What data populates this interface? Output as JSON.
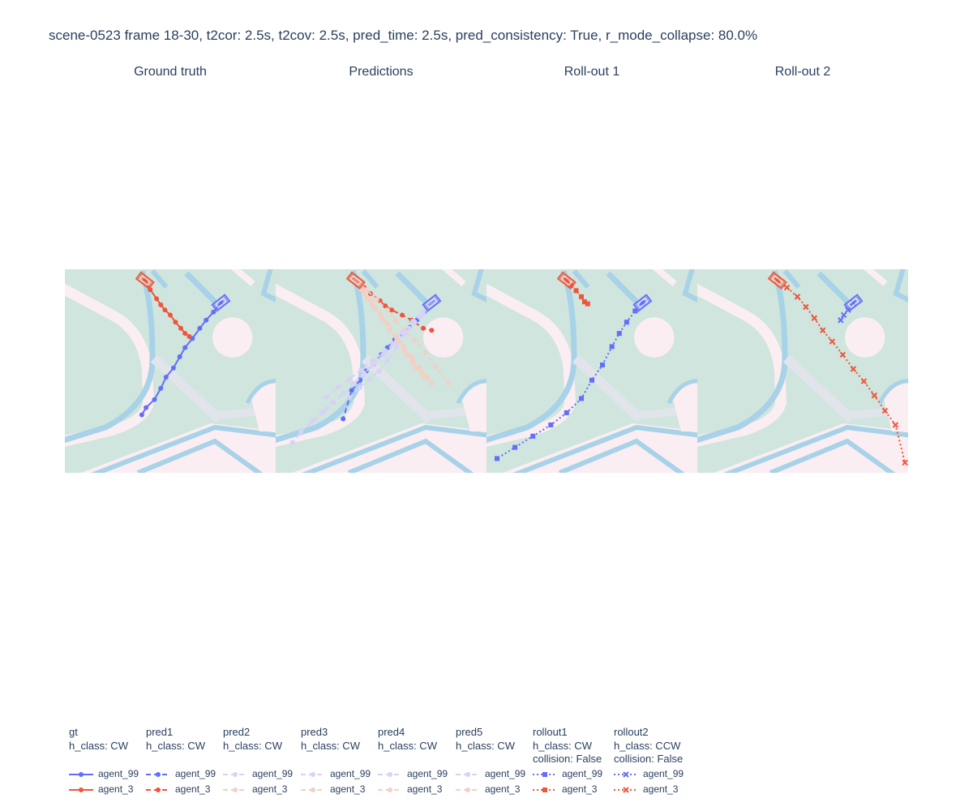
{
  "title": "scene-0523 frame 18-30, t2cor: 2.5s, t2cov: 2.5s, pred_time: 2.5s, pred_consistency: True, r_mode_collapse: 80.0%",
  "panels": [
    {
      "title": "Ground truth"
    },
    {
      "title": "Predictions"
    },
    {
      "title": "Roll-out 1"
    },
    {
      "title": "Roll-out 2"
    }
  ],
  "colors": {
    "agent_99": "#636efa",
    "agent_3": "#ef553b",
    "agent_99_faded": "#d6d2f8",
    "agent_3_faded": "#f4cfc3",
    "map_background": "#cfe5de",
    "lane_border": "#a8d2e8",
    "sidewalk": "#fbeef2",
    "crosswalk": "#e1e4ea"
  },
  "chart_data": {
    "type": "scatter",
    "title": "scene-0523 frame 18-30, t2cor: 2.5s, t2cov: 2.5s, pred_time: 2.5s, pred_consistency: True, r_mode_collapse: 80.0%",
    "panel_extent": {
      "x": [
        0,
        100
      ],
      "y": [
        0,
        100
      ]
    },
    "map_elements": {
      "center_roundel": {
        "cx": 79.5,
        "cy": 66.5,
        "r": 9.5
      }
    },
    "vehicles": {
      "agent_3": {
        "x": 38,
        "y": 94.5,
        "heading_deg": -38
      },
      "agent_99": {
        "x": 74,
        "y": 83.5,
        "heading_deg": 38
      }
    },
    "panels": [
      {
        "title": "Ground truth",
        "series": [
          {
            "name": "gt",
            "agent": "agent_99",
            "marker": "circle",
            "dash": "solid",
            "faded": false,
            "x": [
              74,
              70.5,
              67,
              64,
              60.5,
              57,
              54.5,
              51.5,
              48,
              45.5,
              42.5,
              38.5,
              36.5
            ],
            "y": [
              83.5,
              79,
              75,
              71,
              66,
              61.5,
              57,
              51.5,
              47,
              41.5,
              36,
              32,
              28.5
            ]
          },
          {
            "name": "gt",
            "agent": "agent_3",
            "marker": "circle",
            "dash": "solid",
            "faded": false,
            "x": [
              38,
              40.5,
              43.5,
              45.5,
              47.5,
              50,
              52.5,
              55,
              57,
              59
            ],
            "y": [
              94.5,
              90,
              85.5,
              82.5,
              80,
              77.5,
              74,
              71,
              68.5,
              67
            ]
          }
        ]
      },
      {
        "title": "Predictions",
        "series": [
          {
            "name": "pred1",
            "agent": "agent_99",
            "marker": "circle",
            "dash": "dash",
            "faded": false,
            "x": [
              74,
              70.5,
              67,
              63.5,
              60,
              56.5,
              53,
              50,
              46.5,
              43,
              40,
              36,
              32
            ],
            "y": [
              83.5,
              79,
              75,
              71.5,
              68,
              65.5,
              61.5,
              58,
              53.5,
              50,
              45.5,
              40.5,
              26.5
            ]
          },
          {
            "name": "pred1",
            "agent": "agent_3",
            "marker": "circle",
            "dash": "dash",
            "faded": false,
            "x": [
              38,
              42,
              45,
              49.5,
              52,
              55,
              60,
              64.5,
              70,
              74
            ],
            "y": [
              94.5,
              91,
              88,
              84.5,
              82,
              80,
              77.5,
              75,
              71,
              70
            ]
          },
          {
            "name": "pred2",
            "agent": "agent_99",
            "marker": "circle",
            "dash": "dash",
            "faded": true,
            "x": [
              74,
              70,
              65.5,
              61.5,
              57.5,
              53,
              49,
              44.5,
              40,
              35
            ],
            "y": [
              83.5,
              79.5,
              74.5,
              68.5,
              61.5,
              55.5,
              50,
              46,
              42,
              37
            ]
          },
          {
            "name": "pred2",
            "agent": "agent_3",
            "marker": "circle",
            "dash": "dash",
            "faded": true,
            "x": [
              38,
              43,
              48,
              53,
              57,
              61,
              66,
              71,
              76,
              82
            ],
            "y": [
              94.5,
              90,
              85,
              80,
              75,
              70,
              65,
              59,
              52,
              44
            ]
          },
          {
            "name": "pred3",
            "agent": "agent_99",
            "marker": "circle",
            "dash": "dash",
            "faded": true,
            "x": [
              74,
              69.5,
              65,
              60,
              55.5,
              51,
              46,
              41.5,
              37,
              32,
              27.5,
              23,
              18
            ],
            "y": [
              83.5,
              79,
              74.5,
              69,
              63.5,
              58,
              53,
              48,
              43.5,
              39,
              34.5,
              30,
              26
            ]
          },
          {
            "name": "pred3",
            "agent": "agent_3",
            "marker": "circle",
            "dash": "dash",
            "faded": true,
            "x": [
              38,
              41.5,
              45.5,
              49.5,
              53.5,
              57,
              60.5,
              64.5,
              68,
              72
            ],
            "y": [
              94.5,
              90,
              84.5,
              78.5,
              73,
              67.5,
              62.5,
              57,
              52,
              47
            ]
          },
          {
            "name": "pred4",
            "agent": "agent_99",
            "marker": "circle",
            "dash": "dash",
            "faded": true,
            "x": [
              74,
              69,
              63.5,
              58,
              52,
              46,
              40.5,
              35,
              29.5,
              24
            ],
            "y": [
              83.5,
              77,
              71,
              65,
              60,
              55,
              50.5,
              46,
              42,
              37
            ]
          },
          {
            "name": "pred4",
            "agent": "agent_3",
            "marker": "circle",
            "dash": "dash",
            "faded": true,
            "x": [
              38,
              42,
              46,
              50,
              54,
              58,
              62,
              66,
              70
            ],
            "y": [
              94.5,
              88,
              82,
              76,
              70,
              64,
              58,
              52,
              47
            ]
          },
          {
            "name": "pred5",
            "agent": "agent_99",
            "marker": "circle",
            "dash": "dash",
            "faded": true,
            "x": [
              74,
              70,
              66,
              61.5,
              57,
              52,
              47,
              42,
              37,
              32,
              27,
              22,
              17,
              12,
              8
            ],
            "y": [
              83.5,
              78.5,
              74,
              69,
              64,
              59,
              54,
              49,
              44,
              39,
              34.5,
              30,
              25,
              20,
              15
            ]
          },
          {
            "name": "pred5",
            "agent": "agent_3",
            "marker": "circle",
            "dash": "dash",
            "faded": true,
            "x": [
              38,
              40.5,
              43.5,
              47,
              50.5,
              54,
              57.5,
              61,
              65,
              69,
              74
            ],
            "y": [
              94.5,
              90,
              85.5,
              81,
              76,
              71,
              65.5,
              60,
              55,
              50,
              44
            ]
          }
        ]
      },
      {
        "title": "Roll-out 1",
        "series": [
          {
            "name": "rollout1",
            "agent": "agent_99",
            "marker": "square",
            "dash": "dot",
            "faded": false,
            "x": [
              74,
              70.5,
              66.5,
              63,
              59.5,
              55,
              50,
              45,
              38,
              30.5,
              22,
              13.5,
              5
            ],
            "y": [
              83.5,
              79.5,
              74,
              68.5,
              62,
              53,
              45.5,
              36.5,
              29.5,
              23.5,
              18,
              12.5,
              7
            ]
          },
          {
            "name": "rollout1",
            "agent": "agent_3",
            "marker": "square",
            "dash": "dot",
            "faded": false,
            "x": [
              38,
              40,
              42.5,
              45,
              46.5,
              48
            ],
            "y": [
              94.5,
              92,
              89.5,
              86.5,
              84,
              83
            ]
          }
        ]
      },
      {
        "title": "Roll-out 2",
        "series": [
          {
            "name": "rollout2",
            "agent": "agent_99",
            "marker": "x",
            "dash": "dot",
            "faded": false,
            "x": [
              74,
              71.5,
              69.5,
              68
            ],
            "y": [
              83.5,
              80,
              77.5,
              75
            ]
          },
          {
            "name": "rollout2",
            "agent": "agent_3",
            "marker": "x",
            "dash": "dot",
            "faded": false,
            "x": [
              38,
              42.5,
              47.5,
              51.5,
              55.5,
              59.5,
              64,
              69,
              74,
              79,
              84,
              89,
              94,
              98.5
            ],
            "y": [
              94.5,
              91,
              86.5,
              81.5,
              76,
              70,
              64.5,
              58,
              51,
              45,
              38,
              30.5,
              23.5,
              5
            ]
          }
        ]
      }
    ]
  },
  "legend": [
    {
      "name": "gt",
      "head": [
        "gt",
        "h_class: CW"
      ],
      "marker": "circle",
      "dash": "solid",
      "faded": false,
      "items": [
        {
          "label": "agent_99",
          "agent": "agent_99"
        },
        {
          "label": "agent_3",
          "agent": "agent_3"
        }
      ]
    },
    {
      "name": "pred1",
      "head": [
        "pred1",
        "h_class: CW"
      ],
      "marker": "circle",
      "dash": "dash",
      "faded": false,
      "items": [
        {
          "label": "agent_99",
          "agent": "agent_99"
        },
        {
          "label": "agent_3",
          "agent": "agent_3"
        }
      ]
    },
    {
      "name": "pred2",
      "head": [
        "pred2",
        "h_class: CW"
      ],
      "marker": "circle",
      "dash": "dash",
      "faded": true,
      "items": [
        {
          "label": "agent_99",
          "agent": "agent_99"
        },
        {
          "label": "agent_3",
          "agent": "agent_3"
        }
      ]
    },
    {
      "name": "pred3",
      "head": [
        "pred3",
        "h_class: CW"
      ],
      "marker": "circle",
      "dash": "dash",
      "faded": true,
      "items": [
        {
          "label": "agent_99",
          "agent": "agent_99"
        },
        {
          "label": "agent_3",
          "agent": "agent_3"
        }
      ]
    },
    {
      "name": "pred4",
      "head": [
        "pred4",
        "h_class: CW"
      ],
      "marker": "circle",
      "dash": "dash",
      "faded": true,
      "items": [
        {
          "label": "agent_99",
          "agent": "agent_99"
        },
        {
          "label": "agent_3",
          "agent": "agent_3"
        }
      ]
    },
    {
      "name": "pred5",
      "head": [
        "pred5",
        "h_class: CW"
      ],
      "marker": "circle",
      "dash": "dash",
      "faded": true,
      "items": [
        {
          "label": "agent_99",
          "agent": "agent_99"
        },
        {
          "label": "agent_3",
          "agent": "agent_3"
        }
      ]
    },
    {
      "name": "rollout1",
      "head": [
        "rollout1",
        "h_class: CW",
        "collision: False"
      ],
      "marker": "square",
      "dash": "dot",
      "faded": false,
      "items": [
        {
          "label": "agent_99",
          "agent": "agent_99"
        },
        {
          "label": "agent_3",
          "agent": "agent_3"
        }
      ]
    },
    {
      "name": "rollout2",
      "head": [
        "rollout2",
        "h_class: CCW",
        "collision: False"
      ],
      "marker": "x",
      "dash": "dot",
      "faded": false,
      "items": [
        {
          "label": "agent_99",
          "agent": "agent_99"
        },
        {
          "label": "agent_3",
          "agent": "agent_3"
        }
      ]
    }
  ]
}
